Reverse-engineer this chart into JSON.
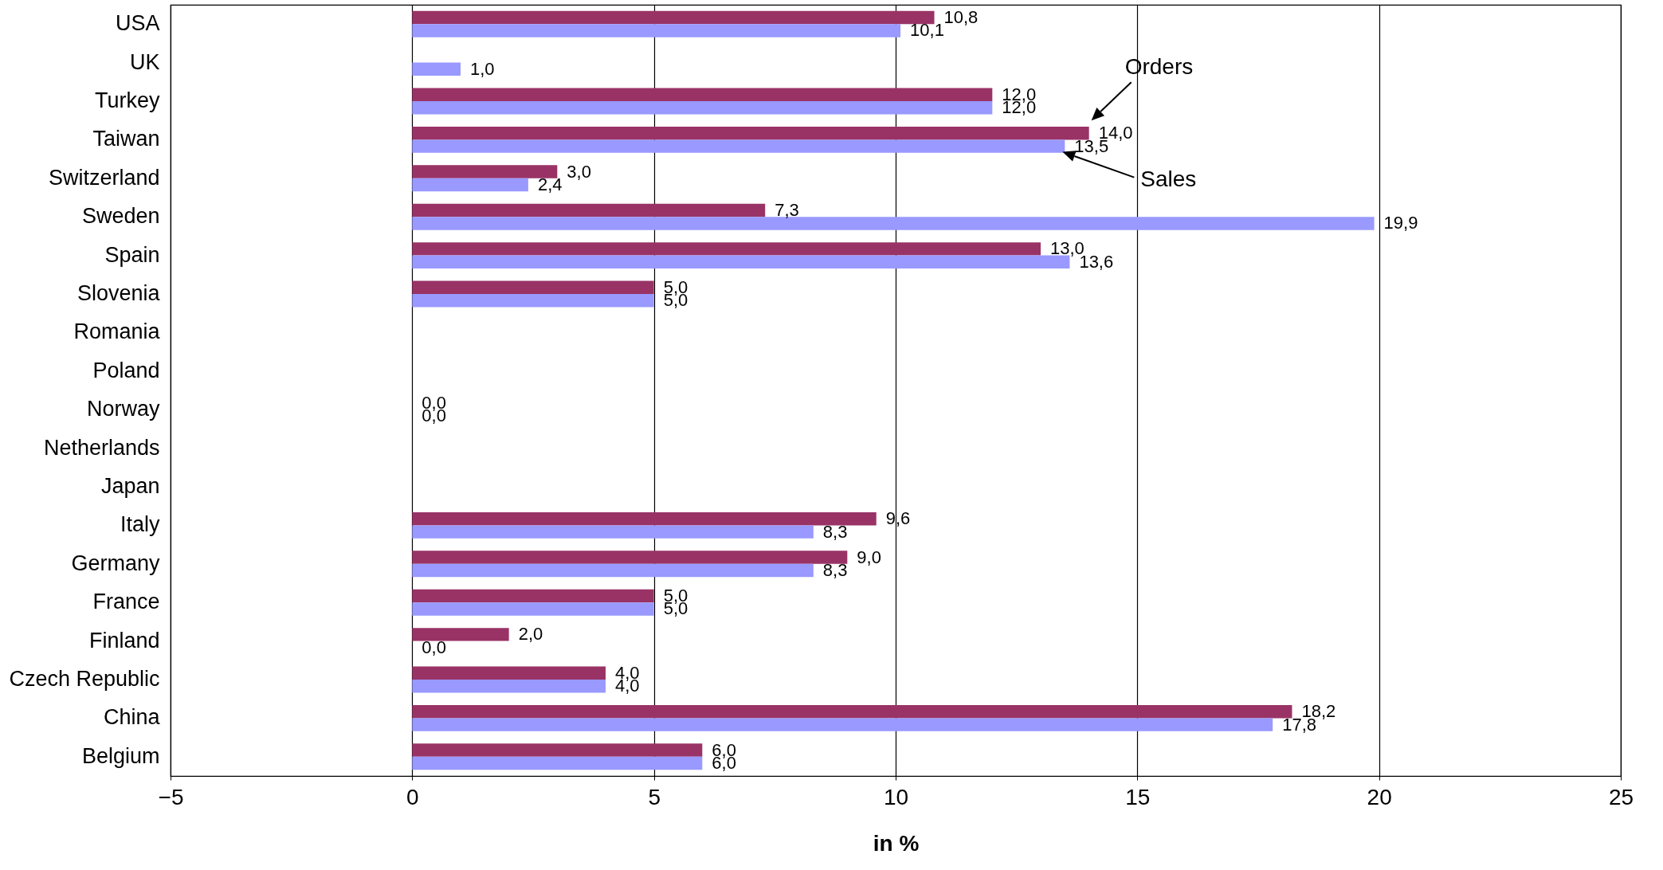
{
  "chart_data": {
    "type": "bar",
    "orientation": "horizontal",
    "xlabel": "in %",
    "categories": [
      "USA",
      "UK",
      "Turkey",
      "Taiwan",
      "Switzerland",
      "Sweden",
      "Spain",
      "Slovenia",
      "Romania",
      "Poland",
      "Norway",
      "Netherlands",
      "Japan",
      "Italy",
      "Germany",
      "France",
      "Finland",
      "Czech Republic",
      "China",
      "Belgium"
    ],
    "series": [
      {
        "name": "Orders",
        "color": "#993366",
        "values": [
          10.8,
          null,
          12.0,
          14.0,
          3.0,
          7.3,
          13.0,
          5.0,
          null,
          null,
          0.0,
          null,
          null,
          9.6,
          9.0,
          5.0,
          2.0,
          4.0,
          18.2,
          6.0
        ],
        "value_labels": [
          "10,8",
          null,
          "12,0",
          "14,0",
          "3,0",
          "7,3",
          "13,0",
          "5,0",
          null,
          null,
          "0,0",
          null,
          null,
          "9,6",
          "9,0",
          "5,0",
          "2,0",
          "4,0",
          "18,2",
          "6,0"
        ]
      },
      {
        "name": "Sales",
        "color": "#9999ff",
        "values": [
          10.1,
          1.0,
          12.0,
          13.5,
          2.4,
          19.9,
          13.6,
          5.0,
          null,
          null,
          0.0,
          null,
          null,
          8.3,
          8.3,
          5.0,
          0.0,
          4.0,
          17.8,
          6.0
        ],
        "value_labels": [
          "10,1",
          "1,0",
          "12,0",
          "13,5",
          "2,4",
          "19,9",
          "13,6",
          "5,0",
          null,
          null,
          "0,0",
          null,
          null,
          "8,3",
          "8,3",
          "5,0",
          "0,0",
          "4,0",
          "17,8",
          "6,0"
        ]
      }
    ],
    "xlim": [
      -5,
      25
    ],
    "xticks": [
      -5,
      0,
      5,
      10,
      15,
      20,
      25
    ],
    "grid": "x",
    "legend": false
  }
}
